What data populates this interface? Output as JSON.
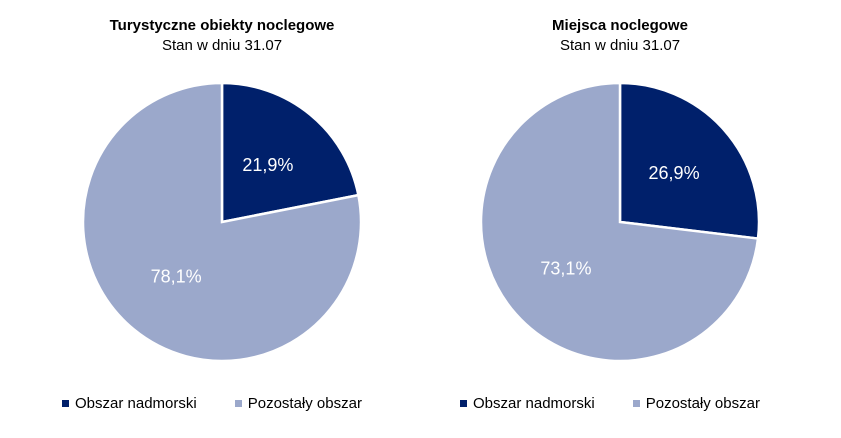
{
  "chart_data": [
    {
      "type": "pie",
      "title": "Turystyczne obiekty noclegowe",
      "subtitle": "Stan w dniu 31.07",
      "slices": [
        {
          "name": "Obszar nadmorski",
          "value": 21.9,
          "label": "21,9%",
          "color": "#00206b",
          "label_color": "#ffffff"
        },
        {
          "name": "Pozostały obszar",
          "value": 78.1,
          "label": "78,1%",
          "color": "#9ba8cb",
          "label_color": "#ffffff"
        }
      ],
      "legend": {
        "placement": "bottom",
        "entries": [
          "Obszar nadmorski",
          "Pozostały obszar"
        ]
      }
    },
    {
      "type": "pie",
      "title": "Miejsca noclegowe",
      "subtitle": "Stan w dniu 31.07",
      "slices": [
        {
          "name": "Obszar nadmorski",
          "value": 26.9,
          "label": "26,9%",
          "color": "#00206b",
          "label_color": "#ffffff"
        },
        {
          "name": "Pozostały obszar",
          "value": 73.1,
          "label": "73,1%",
          "color": "#9ba8cb",
          "label_color": "#ffffff"
        }
      ],
      "legend": {
        "placement": "bottom",
        "entries": [
          "Obszar nadmorski",
          "Pozostały obszar"
        ]
      }
    }
  ]
}
